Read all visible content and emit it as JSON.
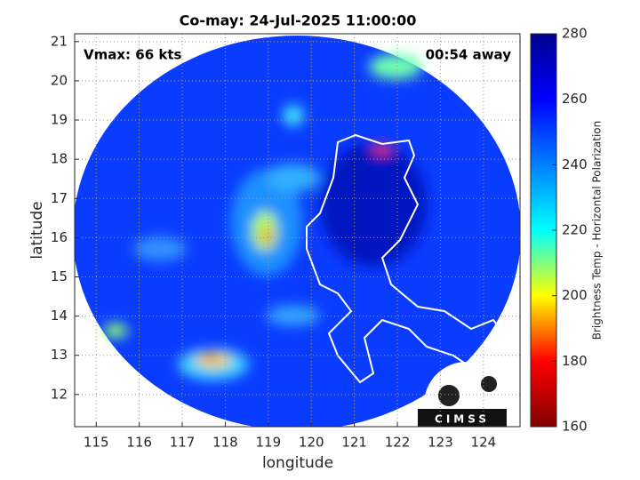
{
  "chart_data": {
    "type": "map",
    "title": "Co-may: 24-Jul-2025 11:00:00",
    "annotations": [
      "Vmax: 66 kts",
      "00:54 away"
    ],
    "x_label": "longitude",
    "y_label": "latitude",
    "xlim": [
      114.5,
      124.85
    ],
    "xticks": [
      115,
      116,
      117,
      118,
      119,
      120,
      121,
      122,
      123,
      124
    ],
    "ylim": [
      11.18,
      21.2
    ],
    "yticks": [
      12,
      13,
      14,
      15,
      16,
      17,
      18,
      19,
      20,
      21
    ],
    "grid": true,
    "colorbar": {
      "label": "Brightness Temp - Horizontal Polarization",
      "lim": [
        160,
        280
      ],
      "ticks": [
        160,
        180,
        200,
        220,
        240,
        260,
        280
      ],
      "colors": [
        "#800000",
        "#ff0000",
        "#ffff00",
        "#00ffff",
        "#0080ff",
        "#0000ff",
        "#00008f"
      ]
    },
    "logo": "CIMSS"
  }
}
